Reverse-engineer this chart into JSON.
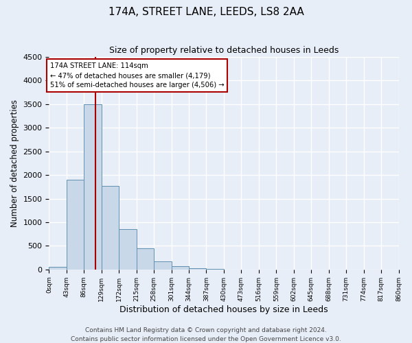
{
  "title": "174A, STREET LANE, LEEDS, LS8 2AA",
  "subtitle": "Size of property relative to detached houses in Leeds",
  "xlabel": "Distribution of detached houses by size in Leeds",
  "ylabel": "Number of detached properties",
  "bin_edges": [
    0,
    43,
    86,
    129,
    172,
    215,
    258,
    301,
    344,
    387,
    430,
    473,
    516,
    559,
    602,
    645,
    688,
    731,
    774,
    817,
    860
  ],
  "bar_heights": [
    50,
    1900,
    3500,
    1775,
    850,
    450,
    175,
    75,
    30,
    15,
    5,
    2,
    0,
    0,
    0,
    0,
    0,
    0,
    0,
    0
  ],
  "bar_color": "#c8d8e8",
  "bar_edge_color": "#6090b0",
  "property_size": 114,
  "vline_color": "#aa0000",
  "annotation_line1": "174A STREET LANE: 114sqm",
  "annotation_line2": "← 47% of detached houses are smaller (4,179)",
  "annotation_line3": "51% of semi-detached houses are larger (4,506) →",
  "annotation_box_color": "#ffffff",
  "annotation_box_edge_color": "#aa0000",
  "ylim": [
    0,
    4500
  ],
  "yticks": [
    0,
    500,
    1000,
    1500,
    2000,
    2500,
    3000,
    3500,
    4000,
    4500
  ],
  "background_color": "#e8eef8",
  "grid_color": "#ffffff",
  "title_fontsize": 11,
  "subtitle_fontsize": 9,
  "ylabel_fontsize": 8.5,
  "xlabel_fontsize": 9,
  "footer_text1": "Contains HM Land Registry data © Crown copyright and database right 2024.",
  "footer_text2": "Contains public sector information licensed under the Open Government Licence v3.0.",
  "footer_fontsize": 6.5
}
